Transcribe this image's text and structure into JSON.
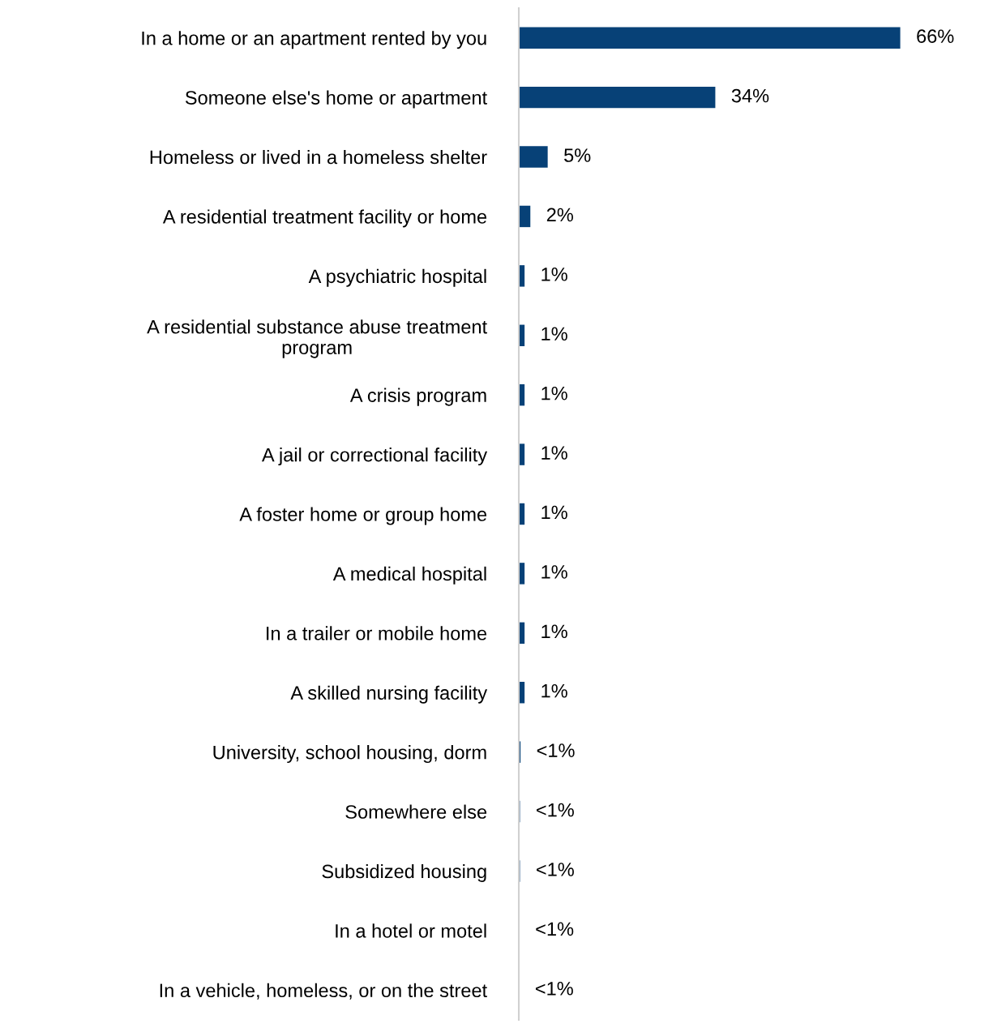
{
  "chart_data": {
    "type": "bar",
    "orientation": "horizontal",
    "color": "#074177",
    "categories": [
      "In a home or an apartment rented by you",
      "Someone else's home or apartment",
      "Homeless or lived in a homeless shelter",
      "A residential treatment facility or home",
      "A psychiatric hospital",
      "A residential substance abuse treatment\nprogram",
      "A crisis program",
      "A jail or correctional facility",
      "A foster home or group home",
      "A medical hospital",
      "In a trailer or mobile home",
      "A skilled nursing facility",
      "University, school housing, dorm",
      "Somewhere else",
      "Subsidized housing",
      "In a hotel or motel",
      "In a vehicle, homeless, or on the street"
    ],
    "values": [
      66,
      34,
      5,
      2,
      1,
      1,
      1,
      1,
      1,
      1,
      1,
      1,
      0.3,
      0.2,
      0.2,
      0.1,
      0.05
    ],
    "value_labels": [
      "66%",
      "34%",
      "5%",
      "2%",
      "1%",
      "1%",
      "1%",
      "1%",
      "1%",
      "1%",
      "1%",
      "1%",
      "<1%",
      "<1%",
      "<1%",
      "<1%",
      "<1%"
    ],
    "grid": false,
    "legend": false
  }
}
